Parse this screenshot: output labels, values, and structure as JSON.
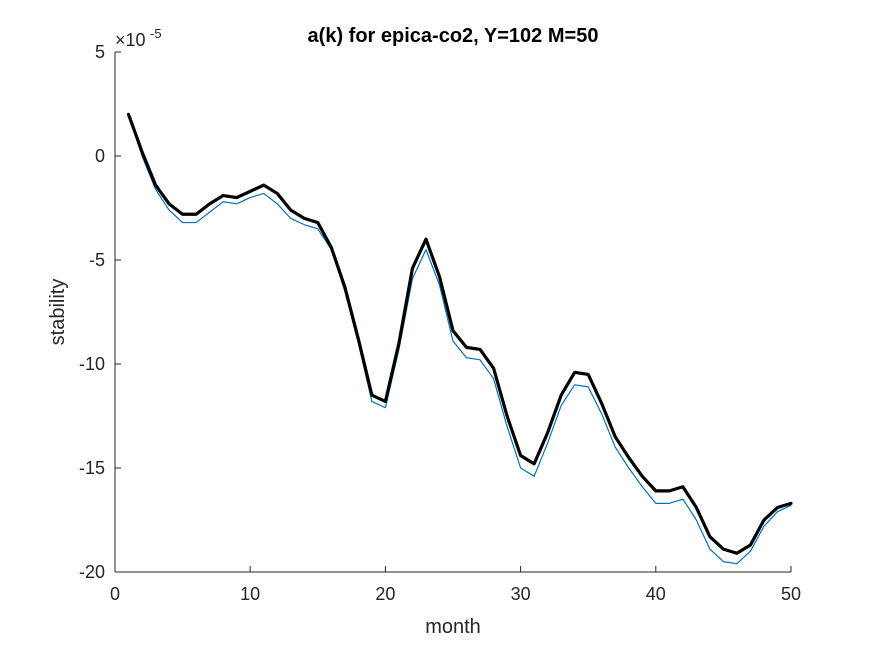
{
  "chart_data": {
    "type": "line",
    "title": "a(k) for epica-co2, Y=102 M=50",
    "xlabel": "month",
    "ylabel": "stability",
    "y_multiplier_base": "×10",
    "y_multiplier_exponent": "-5",
    "xlim": [
      0,
      50
    ],
    "ylim": [
      -20,
      5
    ],
    "x_ticks": [
      0,
      10,
      20,
      30,
      40,
      50
    ],
    "x_tick_labels": [
      "0",
      "10",
      "20",
      "30",
      "40",
      "50"
    ],
    "y_ticks": [
      5,
      0,
      -5,
      -10,
      -15,
      -20
    ],
    "y_tick_labels": [
      "5",
      "0",
      "-5",
      "-10",
      "-15",
      "-20"
    ],
    "grid": false,
    "box": false,
    "x": [
      1,
      2,
      3,
      4,
      5,
      6,
      7,
      8,
      9,
      10,
      11,
      12,
      13,
      14,
      15,
      16,
      17,
      18,
      19,
      20,
      21,
      22,
      23,
      24,
      25,
      26,
      27,
      28,
      29,
      30,
      31,
      32,
      33,
      34,
      35,
      36,
      37,
      38,
      39,
      40,
      41,
      42,
      43,
      44,
      45,
      46,
      47,
      48,
      49,
      50
    ],
    "series": [
      {
        "color": "#0072BD",
        "line_width": 1.2,
        "values": [
          2.0,
          0.0,
          -1.6,
          -2.6,
          -3.2,
          -3.2,
          -2.7,
          -2.2,
          -2.3,
          -2.0,
          -1.8,
          -2.3,
          -3.0,
          -3.3,
          -3.5,
          -4.5,
          -6.5,
          -9.0,
          -11.8,
          -12.1,
          -9.3,
          -5.9,
          -4.5,
          -6.2,
          -8.9,
          -9.7,
          -9.8,
          -10.7,
          -13.0,
          -15.0,
          -15.4,
          -13.8,
          -12.0,
          -11.0,
          -11.1,
          -12.4,
          -14.0,
          -15.0,
          -15.9,
          -16.7,
          -16.7,
          -16.5,
          -17.5,
          -18.9,
          -19.5,
          -19.6,
          -19.0,
          -17.8,
          -17.1,
          -16.8
        ]
      },
      {
        "color": "#000000",
        "line_width": 3.2,
        "values": [
          2.0,
          0.2,
          -1.4,
          -2.3,
          -2.8,
          -2.8,
          -2.3,
          -1.9,
          -2.0,
          -1.7,
          -1.4,
          -1.8,
          -2.6,
          -3.0,
          -3.2,
          -4.4,
          -6.3,
          -8.8,
          -11.5,
          -11.8,
          -9.0,
          -5.4,
          -4.0,
          -5.8,
          -8.4,
          -9.2,
          -9.3,
          -10.2,
          -12.5,
          -14.4,
          -14.8,
          -13.3,
          -11.5,
          -10.4,
          -10.5,
          -11.9,
          -13.5,
          -14.5,
          -15.4,
          -16.1,
          -16.1,
          -15.9,
          -16.9,
          -18.3,
          -18.9,
          -19.1,
          -18.7,
          -17.5,
          -16.9,
          -16.7
        ]
      }
    ]
  }
}
